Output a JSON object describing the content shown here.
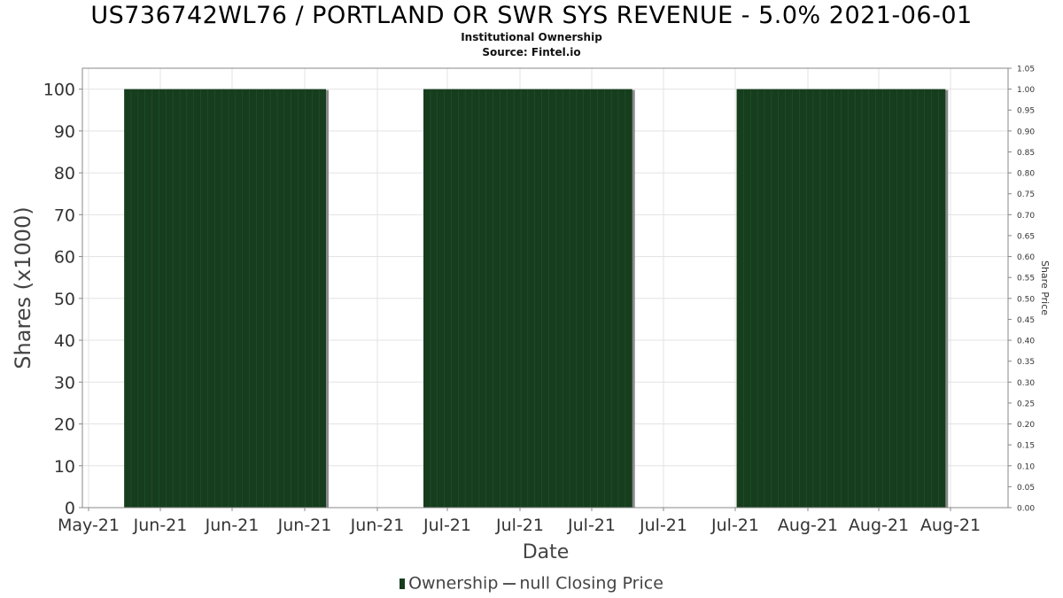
{
  "chart_data": {
    "type": "bar",
    "title": "US736742WL76 / PORTLAND OR SWR SYS REVENUE - 5.0% 2021-06-01",
    "subtitle_1": "Institutional Ownership",
    "subtitle_2": "Source: Fintel.io",
    "xlabel": "Date",
    "ylabel": "Shares (x1000)",
    "y2label": "Share Price",
    "x_tick_labels": [
      "May-21",
      "Jun-21",
      "Jun-21",
      "Jun-21",
      "Jun-21",
      "Jul-21",
      "Jul-21",
      "Jul-21",
      "Jul-21",
      "Jul-21",
      "Aug-21",
      "Aug-21",
      "Aug-21"
    ],
    "ylim": [
      0,
      105
    ],
    "yticks": [
      0,
      10,
      20,
      30,
      40,
      50,
      60,
      70,
      80,
      90,
      100
    ],
    "y2lim": [
      0,
      1.05
    ],
    "y2ticks": [
      "0.00",
      "0.05",
      "0.10",
      "0.15",
      "0.20",
      "0.25",
      "0.30",
      "0.35",
      "0.40",
      "0.45",
      "0.50",
      "0.55",
      "0.60",
      "0.65",
      "0.70",
      "0.75",
      "0.80",
      "0.85",
      "0.90",
      "0.95",
      "1.00",
      "1.05"
    ],
    "grid": true,
    "legend_placement": "bottom",
    "series": [
      {
        "name": "Ownership",
        "color": "#163d1d",
        "segments": [
          {
            "start": "2021-06-01",
            "end": "2021-06-30",
            "value": 100
          },
          {
            "start": "2021-07-14",
            "end": "2021-08-13",
            "value": 100
          },
          {
            "start": "2021-08-28",
            "end": "2021-09-27",
            "value": 100
          }
        ]
      },
      {
        "name": "null Closing Price",
        "color": "#555555",
        "values": []
      }
    ]
  }
}
